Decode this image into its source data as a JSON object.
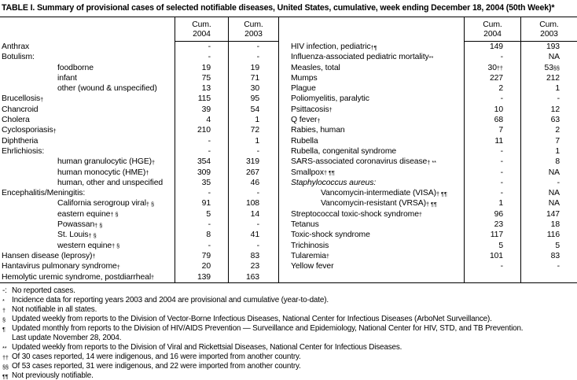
{
  "title": "TABLE I. Summary of provisional cases of selected notifiable diseases, United States, cumulative, week ending December 18, 2004 (50th Week)*",
  "table": {
    "header": {
      "cum": "Cum.",
      "y2004": "2004",
      "y2003": "2003"
    },
    "rows": [
      {
        "left": {
          "name": "Anthrax",
          "v04": "-",
          "v03": "-"
        },
        "right": {
          "name": "HIV infection, pediatric",
          "sup": "†¶",
          "v04": "149",
          "v03": "193"
        }
      },
      {
        "left": {
          "name": "Botulism:",
          "v04": "-",
          "v03": "-"
        },
        "right": {
          "name": "Influenza-associated pediatric mortality",
          "sup": "**",
          "v04": "-",
          "v03": "NA"
        }
      },
      {
        "left": {
          "name": "foodborne",
          "ind": true,
          "v04": "19",
          "v03": "19"
        },
        "right": {
          "name": "Measles, total",
          "v04": "30",
          "v04s": "††",
          "v03": "53",
          "v03s": "§§"
        }
      },
      {
        "left": {
          "name": "infant",
          "ind": true,
          "v04": "75",
          "v03": "71"
        },
        "right": {
          "name": "Mumps",
          "v04": "227",
          "v03": "212"
        }
      },
      {
        "left": {
          "name": "other (wound & unspecified)",
          "ind": true,
          "v04": "13",
          "v03": "30"
        },
        "right": {
          "name": "Plague",
          "v04": "2",
          "v03": "1"
        }
      },
      {
        "left": {
          "name": "Brucellosis",
          "sup": "†",
          "v04": "115",
          "v03": "95"
        },
        "right": {
          "name": "Poliomyelitis, paralytic",
          "v04": "-",
          "v03": "-"
        }
      },
      {
        "left": {
          "name": "Chancroid",
          "v04": "39",
          "v03": "54"
        },
        "right": {
          "name": "Psittacosis",
          "sup": "†",
          "v04": "10",
          "v03": "12"
        }
      },
      {
        "left": {
          "name": "Cholera",
          "v04": "4",
          "v03": "1"
        },
        "right": {
          "name": "Q fever",
          "sup": "†",
          "v04": "68",
          "v03": "63"
        }
      },
      {
        "left": {
          "name": "Cyclosporiasis",
          "sup": "†",
          "v04": "210",
          "v03": "72"
        },
        "right": {
          "name": "Rabies, human",
          "v04": "7",
          "v03": "2"
        }
      },
      {
        "left": {
          "name": "Diphtheria",
          "v04": "-",
          "v03": "1"
        },
        "right": {
          "name": "Rubella",
          "v04": "11",
          "v03": "7"
        }
      },
      {
        "left": {
          "name": "Ehrlichiosis:",
          "v04": "-",
          "v03": "-"
        },
        "right": {
          "name": "Rubella, congenital syndrome",
          "v04": "-",
          "v03": "1"
        }
      },
      {
        "left": {
          "name": "human granulocytic (HGE)",
          "sup": "†",
          "ind": true,
          "v04": "354",
          "v03": "319"
        },
        "right": {
          "name": "SARS-associated coronavirus disease",
          "sup": "† **",
          "v04": "-",
          "v03": "8"
        }
      },
      {
        "left": {
          "name": "human monocytic (HME)",
          "sup": "†",
          "ind": true,
          "v04": "309",
          "v03": "267"
        },
        "right": {
          "name": "Smallpox",
          "sup": "† ¶¶",
          "v04": "-",
          "v03": "NA"
        }
      },
      {
        "left": {
          "name": "human, other and unspecified",
          "ind": true,
          "v04": "35",
          "v03": "46"
        },
        "right": {
          "name": "Staphylococcus aureus:",
          "ital": true,
          "v04": "-",
          "v03": "-"
        }
      },
      {
        "left": {
          "name": "Encephalitis/Meningitis:",
          "v04": "-",
          "v03": "-"
        },
        "right": {
          "name": "Vancomycin-intermediate (VISA)",
          "sup": "† ¶¶",
          "ind": true,
          "v04": "-",
          "v03": "NA"
        }
      },
      {
        "left": {
          "name": "California serogroup viral",
          "sup": "† §",
          "ind": true,
          "v04": "91",
          "v03": "108"
        },
        "right": {
          "name": "Vancomycin-resistant (VRSA)",
          "sup": "† ¶¶",
          "ind": true,
          "v04": "1",
          "v03": "NA"
        }
      },
      {
        "left": {
          "name": "eastern equine",
          "sup": "† §",
          "ind": true,
          "v04": "5",
          "v03": "14"
        },
        "right": {
          "name": "Streptococcal toxic-shock syndrome",
          "sup": "†",
          "v04": "96",
          "v03": "147"
        }
      },
      {
        "left": {
          "name": "Powassan",
          "sup": "† §",
          "ind": true,
          "v04": "-",
          "v03": "-"
        },
        "right": {
          "name": "Tetanus",
          "v04": "23",
          "v03": "18"
        }
      },
      {
        "left": {
          "name": "St. Louis",
          "sup": "† §",
          "ind": true,
          "v04": "8",
          "v03": "41"
        },
        "right": {
          "name": "Toxic-shock syndrome",
          "v04": "117",
          "v03": "116"
        }
      },
      {
        "left": {
          "name": "western equine",
          "sup": "† §",
          "ind": true,
          "v04": "-",
          "v03": "-"
        },
        "right": {
          "name": "Trichinosis",
          "v04": "5",
          "v03": "5"
        }
      },
      {
        "left": {
          "name": "Hansen disease (leprosy)",
          "sup": "†",
          "v04": "79",
          "v03": "83"
        },
        "right": {
          "name": "Tularemia",
          "sup": "†",
          "v04": "101",
          "v03": "83"
        }
      },
      {
        "left": {
          "name": "Hantavirus pulmonary syndrome",
          "sup": "†",
          "v04": "20",
          "v03": "23"
        },
        "right": {
          "name": "Yellow fever",
          "v04": "-",
          "v03": "-"
        }
      },
      {
        "left": {
          "name": "Hemolytic uremic syndrome, postdiarrheal",
          "sup": "†",
          "v04": "139",
          "v03": "163"
        },
        "right": null
      }
    ]
  },
  "footnotes": [
    {
      "marker": "-:",
      "supmark": false,
      "text": "No reported cases."
    },
    {
      "marker": "*",
      "supmark": true,
      "text": "Incidence data for reporting years 2003 and 2004 are provisional and cumulative (year-to-date)."
    },
    {
      "marker": "†",
      "supmark": true,
      "text": "Not notifiable in all states."
    },
    {
      "marker": "§",
      "supmark": true,
      "text": "Updated weekly from reports to the Division of Vector-Borne Infectious Diseases, National Center for Infectious Diseases (ArboNet Surveillance)."
    },
    {
      "marker": "¶",
      "supmark": true,
      "text": "Updated monthly from reports to the Division of HIV/AIDS Prevention — Surveillance and Epidemiology, National Center for HIV, STD, and TB Prevention."
    },
    {
      "marker": "",
      "supmark": false,
      "text": "Last update November 28, 2004."
    },
    {
      "marker": "**",
      "supmark": true,
      "text": "Updated weekly from reports to the Division of Viral and Rickettsial Diseases, National Center for Infectious Diseases."
    },
    {
      "marker": "††",
      "supmark": true,
      "text": "Of 30 cases reported, 14 were indigenous, and 16 were imported from another country."
    },
    {
      "marker": "§§",
      "supmark": true,
      "text": "Of 53 cases reported, 31 were indigenous, and 22 were imported from another country."
    },
    {
      "marker": "¶¶",
      "supmark": true,
      "text": "Not previously notifiable."
    }
  ]
}
